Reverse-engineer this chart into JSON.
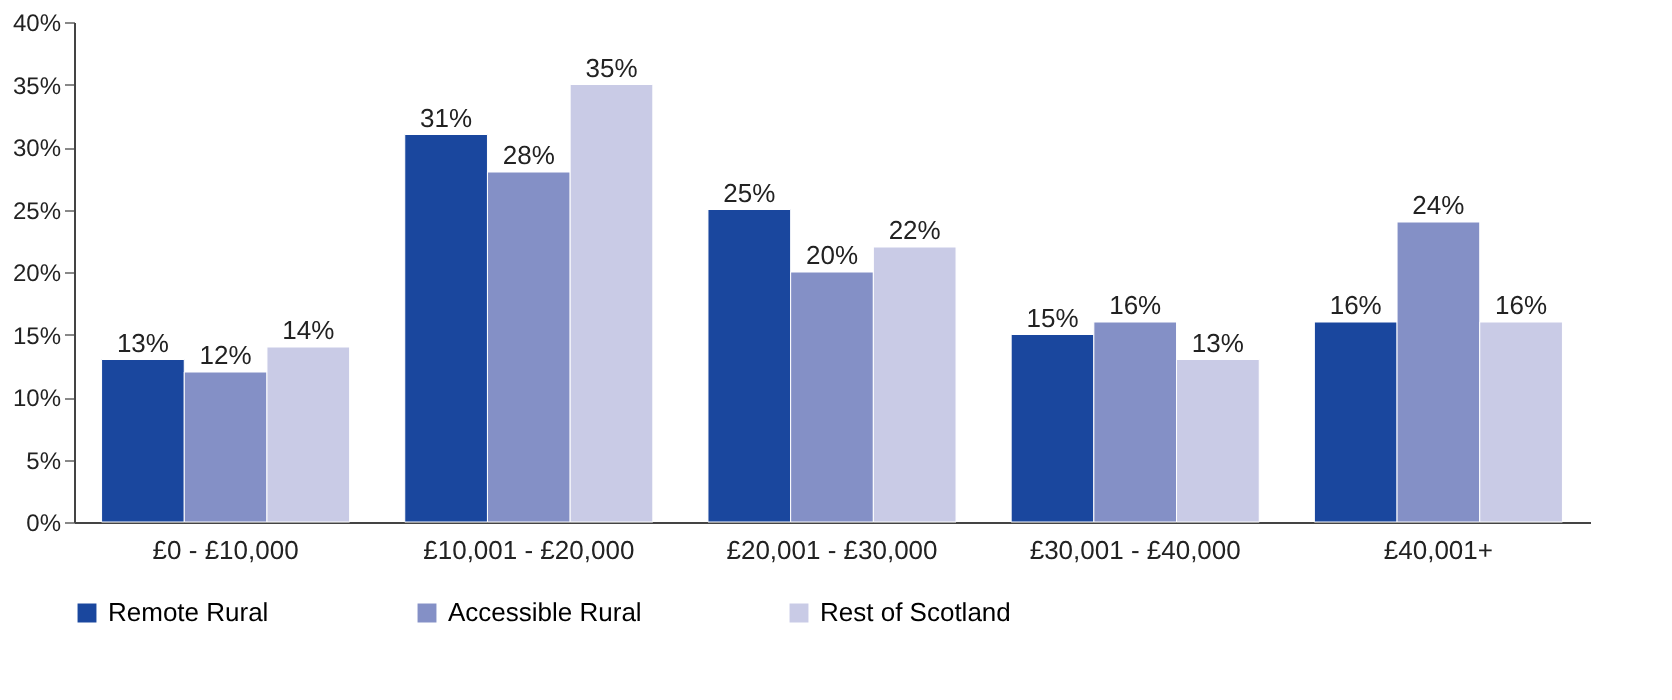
{
  "chart_data": {
    "type": "bar",
    "categories": [
      "£0 - £10,000",
      "£10,001 - £20,000",
      "£20,001 - £30,000",
      "£30,001 - £40,000",
      "£40,001+"
    ],
    "series": [
      {
        "name": "Remote Rural",
        "color": "#1a479e",
        "values": [
          13,
          31,
          25,
          15,
          16
        ],
        "value_labels": [
          "13%",
          "31%",
          "25%",
          "15%",
          "16%"
        ]
      },
      {
        "name": "Accessible Rural",
        "color": "#8490c6",
        "values": [
          12,
          28,
          20,
          16,
          24
        ],
        "value_labels": [
          "12%",
          "28%",
          "20%",
          "16%",
          "24%"
        ]
      },
      {
        "name": "Rest of Scotland",
        "color": "#c9cbe6",
        "values": [
          14,
          35,
          22,
          13,
          16
        ],
        "value_labels": [
          "14%",
          "35%",
          "22%",
          "13%",
          "16%"
        ]
      }
    ],
    "ylim": [
      0,
      40
    ],
    "yticks": [
      {
        "value": 0,
        "label": "0%"
      },
      {
        "value": 5,
        "label": "5%"
      },
      {
        "value": 10,
        "label": "10%"
      },
      {
        "value": 15,
        "label": "15%"
      },
      {
        "value": 20,
        "label": "20%"
      },
      {
        "value": 25,
        "label": "25%"
      },
      {
        "value": 30,
        "label": "30%"
      },
      {
        "value": 35,
        "label": "35%"
      },
      {
        "value": 40,
        "label": "40%"
      }
    ],
    "grid": false,
    "legend": "bottom"
  }
}
